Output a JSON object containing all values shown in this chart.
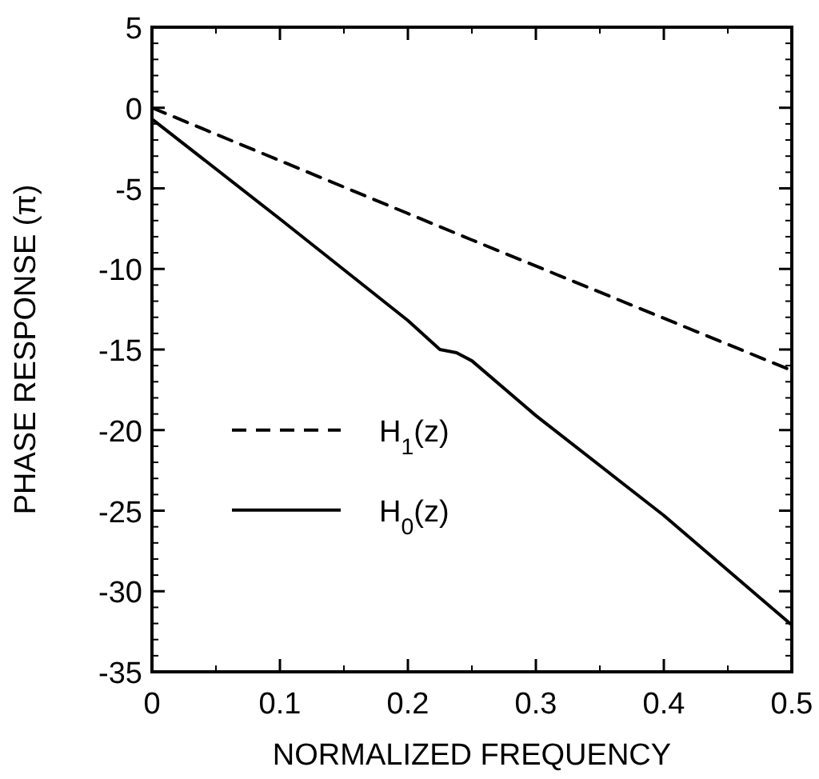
{
  "chart_data": {
    "type": "line",
    "xlabel": "NORMALIZED FREQUENCY",
    "ylabel": "PHASE RESPONSE (π)",
    "xlim": [
      0,
      0.5
    ],
    "xticks": [
      {
        "value": 0,
        "label": "0"
      },
      0.1,
      0.2,
      0.3,
      0.4,
      0.5
    ],
    "ylim": [
      -35,
      5
    ],
    "yticks": [
      -35,
      -30,
      -25,
      -20,
      -15,
      -10,
      -5,
      0,
      5
    ],
    "legend": "left",
    "grid": false,
    "series": [
      {
        "name": "H$_{1}$(z)",
        "color": "#000000",
        "line_style": "dashed",
        "x": [
          0,
          0.25,
          0.5
        ],
        "values": [
          0,
          -8.2,
          -16.3
        ]
      },
      {
        "name": "H$_{0}$(z)",
        "color": "#000000",
        "line_style": "solid",
        "x": [
          0,
          0.1,
          0.2,
          0.225,
          0.238,
          0.25,
          0.3,
          0.4,
          0.5
        ],
        "values": [
          -0.7,
          -6.9,
          -13.2,
          -15,
          -15.2,
          -15.7,
          -19.1,
          -25.3,
          -32.1
        ]
      }
    ]
  }
}
